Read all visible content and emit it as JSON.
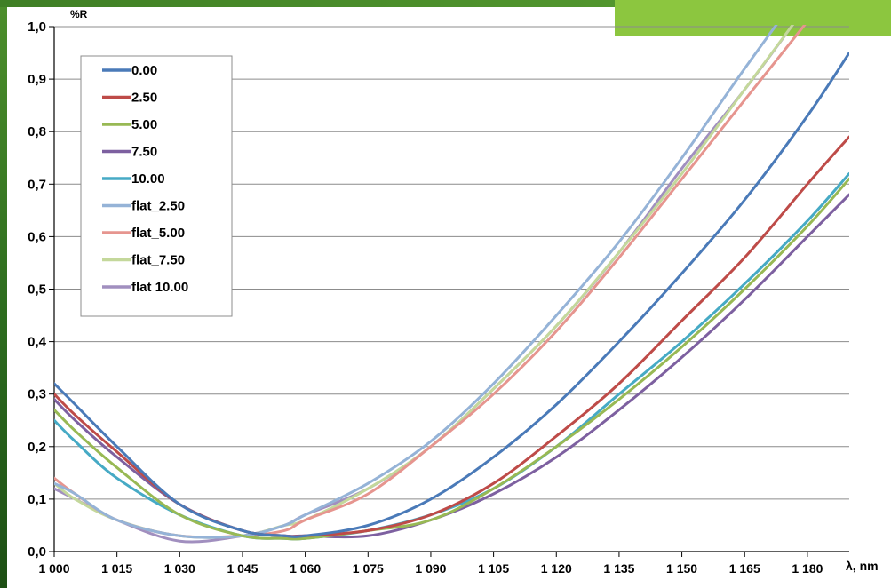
{
  "colors": {
    "frame": "#2f6a1f",
    "accent": "#8cc63f",
    "grid": "#8c8c8c",
    "background": "#ffffff"
  },
  "chart_data": {
    "type": "line",
    "title": "",
    "ylabel": "%R",
    "xlabel": "λ, nm",
    "xlim": [
      1000,
      1190
    ],
    "ylim": [
      0,
      1
    ],
    "grid": true,
    "legend_position": "top-left",
    "x_ticks": [
      1000,
      1015,
      1030,
      1045,
      1060,
      1075,
      1090,
      1105,
      1120,
      1135,
      1150,
      1165,
      1180
    ],
    "x_tick_labels": [
      "1 000",
      "1 015",
      "1 030",
      "1 045",
      "1 060",
      "1 075",
      "1 090",
      "1 105",
      "1 120",
      "1 135",
      "1 150",
      "1 165",
      "1 180"
    ],
    "y_ticks": [
      0,
      0.1,
      0.2,
      0.3,
      0.4,
      0.5,
      0.6,
      0.7,
      0.8,
      0.9,
      1.0
    ],
    "y_tick_labels": [
      "0,0",
      "0,1",
      "0,2",
      "0,3",
      "0,4",
      "0,5",
      "0,6",
      "0,7",
      "0,8",
      "0,9",
      "1,0"
    ],
    "series": [
      {
        "name": "0.00",
        "color": "#4a7ab8",
        "x": [
          1000,
          1005,
          1015,
          1030,
          1045,
          1055,
          1060,
          1075,
          1090,
          1105,
          1120,
          1135,
          1150,
          1165,
          1180,
          1190
        ],
        "y": [
          0.32,
          0.28,
          0.2,
          0.09,
          0.04,
          0.03,
          0.03,
          0.05,
          0.1,
          0.18,
          0.28,
          0.4,
          0.53,
          0.67,
          0.83,
          0.95
        ]
      },
      {
        "name": "2.50",
        "color": "#be4b48",
        "x": [
          1000,
          1005,
          1015,
          1030,
          1045,
          1055,
          1060,
          1075,
          1090,
          1105,
          1120,
          1135,
          1150,
          1165,
          1180,
          1190
        ],
        "y": [
          0.3,
          0.26,
          0.19,
          0.09,
          0.04,
          0.03,
          0.03,
          0.04,
          0.07,
          0.13,
          0.22,
          0.32,
          0.44,
          0.56,
          0.7,
          0.79
        ]
      },
      {
        "name": "5.00",
        "color": "#98b954",
        "x": [
          1000,
          1005,
          1015,
          1030,
          1045,
          1055,
          1060,
          1075,
          1090,
          1105,
          1120,
          1135,
          1150,
          1165,
          1180,
          1190
        ],
        "y": [
          0.27,
          0.23,
          0.16,
          0.07,
          0.03,
          0.025,
          0.025,
          0.04,
          0.06,
          0.12,
          0.2,
          0.29,
          0.39,
          0.5,
          0.62,
          0.71
        ]
      },
      {
        "name": "7.50",
        "color": "#7d60a0",
        "x": [
          1000,
          1005,
          1015,
          1030,
          1045,
          1055,
          1060,
          1075,
          1090,
          1105,
          1120,
          1135,
          1150,
          1165,
          1180,
          1190
        ],
        "y": [
          0.29,
          0.25,
          0.18,
          0.09,
          0.04,
          0.03,
          0.03,
          0.03,
          0.06,
          0.11,
          0.18,
          0.27,
          0.37,
          0.48,
          0.6,
          0.68
        ]
      },
      {
        "name": "10.00",
        "color": "#46aac5",
        "x": [
          1000,
          1005,
          1015,
          1030,
          1045,
          1055,
          1060,
          1075,
          1090,
          1105,
          1120,
          1135,
          1150,
          1165,
          1180,
          1190
        ],
        "y": [
          0.25,
          0.21,
          0.14,
          0.07,
          0.03,
          0.025,
          0.025,
          0.04,
          0.07,
          0.12,
          0.2,
          0.3,
          0.4,
          0.51,
          0.63,
          0.72
        ]
      },
      {
        "name": "flat_2.50",
        "color": "#95b3d7",
        "x": [
          1000,
          1005,
          1015,
          1030,
          1045,
          1055,
          1060,
          1075,
          1090,
          1105,
          1120,
          1135,
          1150,
          1165,
          1175
        ],
        "y": [
          0.13,
          0.11,
          0.06,
          0.03,
          0.03,
          0.05,
          0.07,
          0.13,
          0.21,
          0.32,
          0.45,
          0.59,
          0.75,
          0.92,
          1.03
        ]
      },
      {
        "name": "flat_5.00",
        "color": "#e6958f",
        "x": [
          1000,
          1005,
          1015,
          1030,
          1045,
          1055,
          1060,
          1075,
          1090,
          1105,
          1120,
          1135,
          1150,
          1165,
          1180
        ],
        "y": [
          0.14,
          0.11,
          0.06,
          0.03,
          0.03,
          0.04,
          0.06,
          0.11,
          0.2,
          0.3,
          0.42,
          0.56,
          0.71,
          0.86,
          1.01
        ]
      },
      {
        "name": "flat_7.50",
        "color": "#c4d89b",
        "x": [
          1000,
          1005,
          1015,
          1030,
          1045,
          1055,
          1060,
          1075,
          1090,
          1105,
          1120,
          1135,
          1150,
          1165,
          1178
        ],
        "y": [
          0.13,
          0.1,
          0.06,
          0.03,
          0.03,
          0.05,
          0.06,
          0.12,
          0.2,
          0.31,
          0.43,
          0.57,
          0.72,
          0.88,
          1.02
        ]
      },
      {
        "name": "flat 10.00",
        "color": "#a18fbf",
        "x": [
          1000,
          1005,
          1015,
          1030,
          1045,
          1055,
          1060,
          1075,
          1090,
          1105,
          1120,
          1135,
          1150,
          1165,
          1178
        ],
        "y": [
          0.12,
          0.1,
          0.06,
          0.02,
          0.03,
          0.05,
          0.07,
          0.12,
          0.2,
          0.31,
          0.43,
          0.57,
          0.73,
          0.88,
          1.02
        ]
      }
    ]
  }
}
